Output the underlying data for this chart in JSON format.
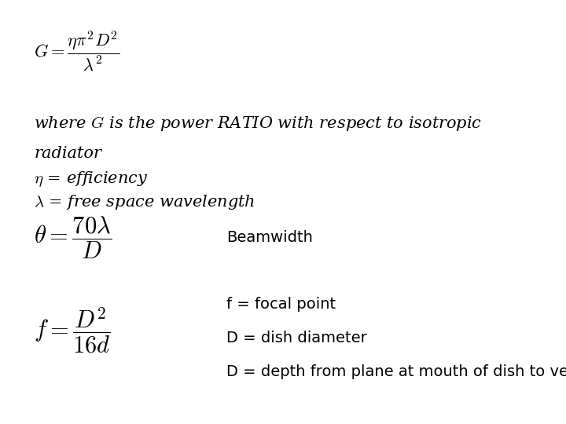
{
  "background_color": "#ffffff",
  "fig_width": 7.2,
  "fig_height": 5.4,
  "dpi": 100,
  "formula1": "$G = \\dfrac{\\eta\\pi^2 D^2}{\\lambda^2}$",
  "text1": "where $G$ is the power RATIO with respect to isotropic",
  "text2": "radiator",
  "text3": "$\\eta$ = efficiency",
  "text4": "$\\lambda$ = free space wavelength",
  "formula2": "$\\theta = \\dfrac{70\\lambda}{D}$",
  "label2": "Beamwidth",
  "formula3": "$f = \\dfrac{D^2}{16d}$",
  "label3a": "f = focal point",
  "label3b": "D = dish diameter",
  "label3c": "D = depth from plane at mouth of dish to vertex.",
  "text_color": "#000000",
  "formula1_fontsize": 16,
  "formula2_fontsize": 22,
  "formula3_fontsize": 22,
  "text_fontsize": 15,
  "label_fontsize": 14
}
